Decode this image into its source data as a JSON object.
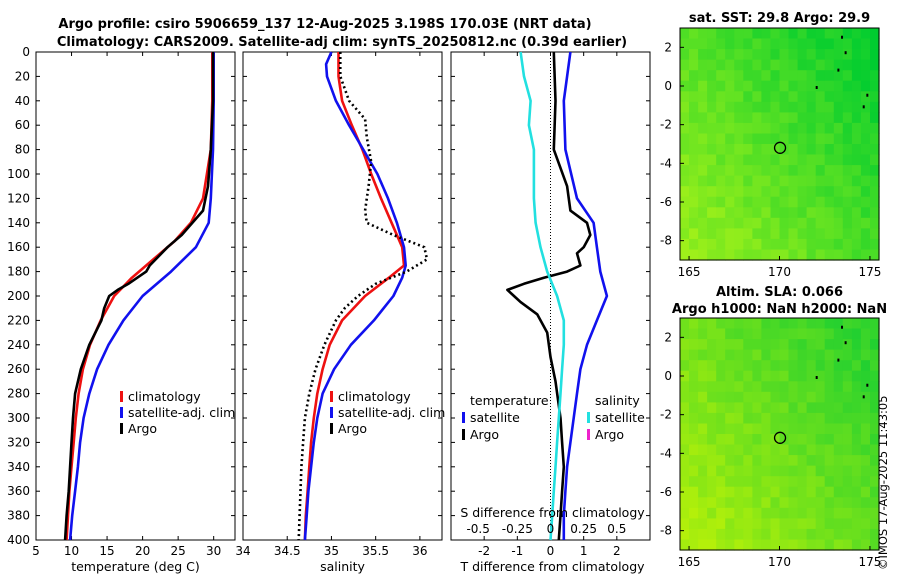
{
  "title_line1": "Argo profile: csiro 5906659_137 12-Aug-2025 3.198S 170.03E (NRT data)",
  "title_line2": "Climatology: CARS2009. Satellite-adj clim: synTS_20250812.nc (0.39d earlier)",
  "timestamp": "©IMOS 17-Aug-2025 11:43:05",
  "colors": {
    "climatology": "#ee1111",
    "satellite": "#1111ee",
    "argo": "#000000",
    "cyan": "#22e0e0",
    "magenta": "#ee22cc"
  },
  "chart_data": [
    {
      "type": "line",
      "title": "",
      "xlabel": "temperature (deg C)",
      "ylabel": "",
      "xlim": [
        5,
        33
      ],
      "ylim": [
        400,
        0
      ],
      "xticks": [
        5,
        10,
        15,
        20,
        25,
        30
      ],
      "yticks": [
        0,
        20,
        40,
        60,
        80,
        100,
        120,
        140,
        160,
        180,
        200,
        220,
        240,
        260,
        280,
        300,
        320,
        340,
        360,
        380,
        400
      ],
      "legend": [
        "climatology",
        "satellite-adj. clim",
        "Argo"
      ],
      "series": [
        {
          "name": "climatology",
          "color_key": "climatology",
          "depth": [
            0,
            40,
            80,
            120,
            140,
            155,
            170,
            185,
            200,
            220,
            240,
            260,
            280,
            300,
            320,
            340,
            360,
            380,
            400
          ],
          "values": [
            29.8,
            29.8,
            29.6,
            28.5,
            26.8,
            24.5,
            21.5,
            18.5,
            16.0,
            14.1,
            12.6,
            11.6,
            11.0,
            10.6,
            10.3,
            10.0,
            9.7,
            9.5,
            9.3
          ]
        },
        {
          "name": "satellite-adj. clim",
          "color_key": "satellite",
          "depth": [
            0,
            40,
            80,
            120,
            140,
            160,
            180,
            200,
            220,
            240,
            260,
            280,
            300,
            320,
            340,
            360,
            380,
            400
          ],
          "values": [
            30.0,
            30.0,
            29.9,
            29.6,
            29.3,
            27.5,
            24.0,
            20.0,
            17.3,
            15.2,
            13.6,
            12.5,
            11.7,
            11.2,
            10.9,
            10.5,
            10.1,
            9.8
          ]
        },
        {
          "name": "Argo",
          "color_key": "argo",
          "depth": [
            0,
            40,
            80,
            110,
            130,
            150,
            160,
            175,
            180,
            190,
            195,
            200,
            210,
            220,
            240,
            260,
            280,
            300,
            320,
            340,
            360,
            380,
            400
          ],
          "values": [
            29.9,
            29.9,
            29.6,
            29.2,
            28.5,
            25.5,
            23.5,
            21.0,
            20.5,
            18.0,
            16.5,
            15.3,
            14.6,
            14.2,
            12.5,
            11.3,
            10.5,
            10.2,
            10.0,
            9.8,
            9.6,
            9.3,
            9.1
          ]
        }
      ]
    },
    {
      "type": "line",
      "title": "",
      "xlabel": "salinity",
      "ylabel": "",
      "xlim": [
        34,
        36.25
      ],
      "ylim": [
        400,
        0
      ],
      "xticks": [
        34,
        34.5,
        35,
        35.5,
        36
      ],
      "legend": [
        "climatology",
        "satellite-adj. clim",
        "Argo"
      ],
      "series": [
        {
          "name": "climatology",
          "color_key": "climatology",
          "depth": [
            0,
            20,
            40,
            60,
            80,
            100,
            120,
            140,
            160,
            175,
            185,
            200,
            220,
            240,
            260,
            280,
            300,
            320,
            340,
            360,
            380,
            400
          ],
          "values": [
            35.08,
            35.08,
            35.12,
            35.23,
            35.35,
            35.45,
            35.56,
            35.68,
            35.8,
            35.82,
            35.65,
            35.38,
            35.12,
            34.98,
            34.9,
            34.84,
            34.8,
            34.77,
            34.75,
            34.73,
            34.71,
            34.7
          ]
        },
        {
          "name": "satellite-adj. clim",
          "color_key": "satellite",
          "depth": [
            0,
            10,
            20,
            40,
            60,
            80,
            100,
            120,
            140,
            160,
            175,
            185,
            200,
            220,
            240,
            260,
            280,
            300,
            320,
            340,
            360,
            380,
            400
          ],
          "values": [
            35.0,
            34.94,
            34.95,
            35.05,
            35.2,
            35.36,
            35.52,
            35.64,
            35.74,
            35.82,
            35.84,
            35.8,
            35.7,
            35.48,
            35.22,
            35.03,
            34.9,
            34.84,
            34.8,
            34.77,
            34.74,
            34.72,
            34.7
          ]
        },
        {
          "name": "Argo",
          "color_key": "argo",
          "depth": [
            0,
            20,
            40,
            55,
            70,
            90,
            110,
            120,
            130,
            140,
            150,
            160,
            170,
            180,
            190,
            200,
            210,
            220,
            240,
            260,
            280,
            300,
            320,
            340,
            360,
            380,
            400
          ],
          "values": [
            35.1,
            35.1,
            35.2,
            35.38,
            35.4,
            35.45,
            35.42,
            35.4,
            35.38,
            35.4,
            35.7,
            36.05,
            36.08,
            35.85,
            35.5,
            35.3,
            35.15,
            35.05,
            34.92,
            34.82,
            34.75,
            34.7,
            34.68,
            34.66,
            34.65,
            34.64,
            34.63
          ]
        }
      ]
    },
    {
      "type": "line",
      "title": "",
      "xlabel": "T difference from climatology",
      "ylabel": "",
      "xlim": [
        -3,
        3
      ],
      "ylim": [
        400,
        0
      ],
      "xticks": [
        -2,
        -1,
        0,
        1,
        2
      ],
      "top_xlabel": "S difference from climatology",
      "top_xtick_labels": [
        "-0.5",
        "-0.25",
        "0",
        "0.25",
        "0.5"
      ],
      "top_xtick_positions": [
        -2,
        -1,
        0,
        1,
        2
      ],
      "legend_left_title": "temperature",
      "legend_right_title": "salinity",
      "legend_left": [
        "satellite",
        "Argo"
      ],
      "legend_right": [
        "satellite",
        "Argo"
      ],
      "series": [
        {
          "name": "T satellite",
          "color_key": "satellite",
          "depth": [
            0,
            20,
            40,
            80,
            120,
            140,
            160,
            180,
            200,
            220,
            240,
            260,
            280,
            300,
            320,
            340,
            360,
            380,
            400
          ],
          "values": [
            0.6,
            0.5,
            0.4,
            0.45,
            0.8,
            1.3,
            1.4,
            1.5,
            1.7,
            1.4,
            1.1,
            0.9,
            0.8,
            0.7,
            0.6,
            0.5,
            0.45,
            0.4,
            0.4
          ]
        },
        {
          "name": "T Argo",
          "color_key": "argo",
          "depth": [
            0,
            40,
            80,
            110,
            130,
            140,
            150,
            160,
            165,
            175,
            180,
            185,
            190,
            195,
            200,
            205,
            215,
            230,
            250,
            270,
            300,
            320,
            340,
            360,
            380,
            400
          ],
          "values": [
            0.1,
            0.15,
            0.1,
            0.5,
            0.6,
            1.1,
            1.2,
            1.0,
            0.8,
            0.9,
            0.5,
            -0.2,
            -0.8,
            -1.3,
            -1.1,
            -0.9,
            -0.4,
            -0.1,
            0.0,
            0.15,
            0.3,
            0.35,
            0.4,
            0.35,
            0.3,
            0.25
          ]
        },
        {
          "name": "S satellite",
          "color_key": "cyan",
          "depth": [
            0,
            20,
            40,
            60,
            80,
            100,
            120,
            140,
            160,
            180,
            200,
            220,
            240,
            260,
            280,
            300,
            320,
            340,
            360,
            380,
            400
          ],
          "values": [
            -0.9,
            -0.8,
            -0.6,
            -0.65,
            -0.5,
            -0.5,
            -0.5,
            -0.45,
            -0.3,
            -0.1,
            0.2,
            0.4,
            0.4,
            0.35,
            0.3,
            0.25,
            0.2,
            0.15,
            0.1,
            0.05,
            0.0
          ]
        }
      ]
    },
    {
      "type": "heatmap",
      "title": "sat. SST: 29.8 Argo: 29.9",
      "xticks": [
        165,
        170,
        175
      ],
      "yticks": [
        2,
        0,
        -2,
        -4,
        -6,
        -8
      ],
      "xlim": [
        164.5,
        175.5
      ],
      "ylim": [
        -9,
        3
      ],
      "marker": [
        170.03,
        -3.198
      ],
      "bottom_left_color": "#9ef01a",
      "top_right_color": "#00cc30"
    },
    {
      "type": "heatmap",
      "title": "Altim. SLA: 0.066",
      "title2": "Argo h1000: NaN h2000: NaN",
      "xticks": [
        165,
        170,
        175
      ],
      "yticks": [
        2,
        0,
        -2,
        -4,
        -6,
        -8
      ],
      "xlim": [
        164.5,
        175.5
      ],
      "ylim": [
        -9,
        3
      ],
      "marker": [
        170.03,
        -3.198
      ],
      "bottom_left_color": "#b4f00a",
      "top_right_color": "#22d030"
    }
  ]
}
